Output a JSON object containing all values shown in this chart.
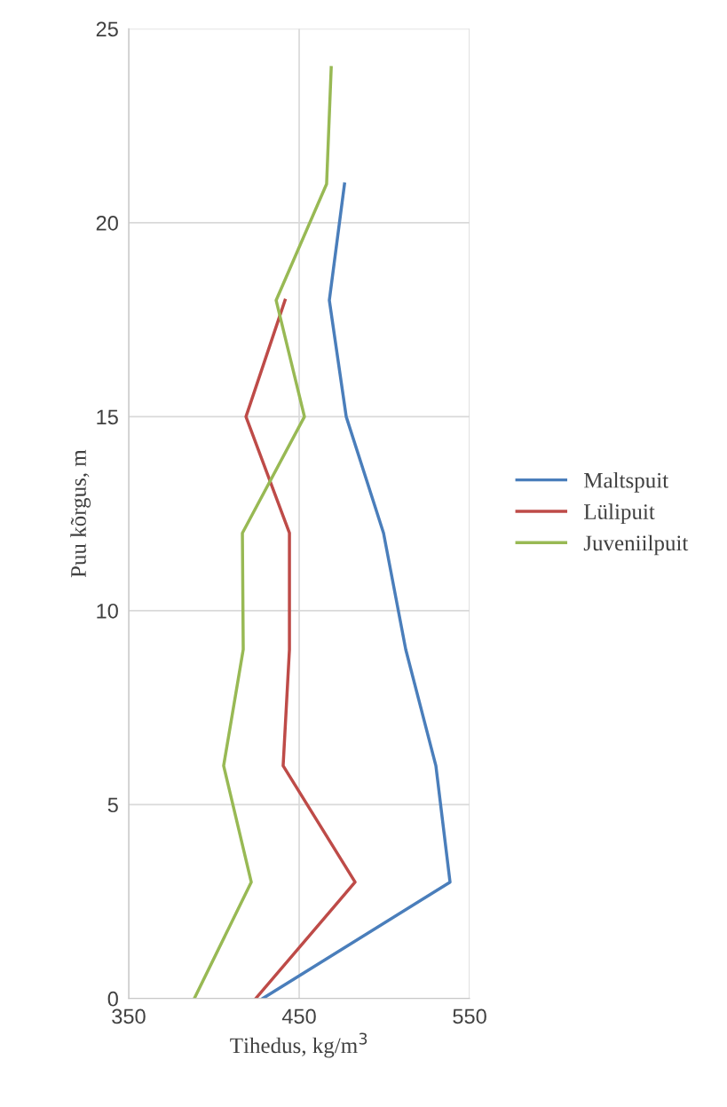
{
  "chart_data": {
    "type": "line",
    "xlabel": "Tihedus, kg/m$^{3}$",
    "ylabel": "Puu kõrgus, m",
    "series": [
      {
        "name": "Maltspuit",
        "color": "#4a7ebb",
        "x": [
          428.6,
          538.5,
          530.2,
          512.5,
          499.5,
          477.6,
          467.7,
          476.6
        ],
        "values": [
          0,
          3,
          6,
          9,
          12,
          15,
          18,
          21
        ]
      },
      {
        "name": "Lülipuit",
        "color": "#be4b48",
        "x": [
          424.5,
          482.8,
          440.6,
          444.3,
          444.3,
          418.8,
          441.7
        ],
        "values": [
          0,
          3,
          6,
          9,
          12,
          15,
          18
        ]
      },
      {
        "name": "Juveniilpuit",
        "color": "#98b954",
        "x": [
          388.5,
          421.9,
          405.7,
          417.2,
          416.7,
          453.1,
          436.5,
          466.1,
          468.8
        ],
        "values": [
          0,
          3,
          6,
          9,
          12,
          15,
          18,
          21,
          24
        ]
      }
    ],
    "xlim": [
      350,
      550
    ],
    "xticks": [
      350,
      450,
      550
    ],
    "ylim": [
      0,
      25
    ],
    "yticks": [
      0,
      5,
      10,
      15,
      20,
      25
    ],
    "grid": true,
    "legend": "right",
    "marker": "none",
    "line_style": "solid"
  }
}
